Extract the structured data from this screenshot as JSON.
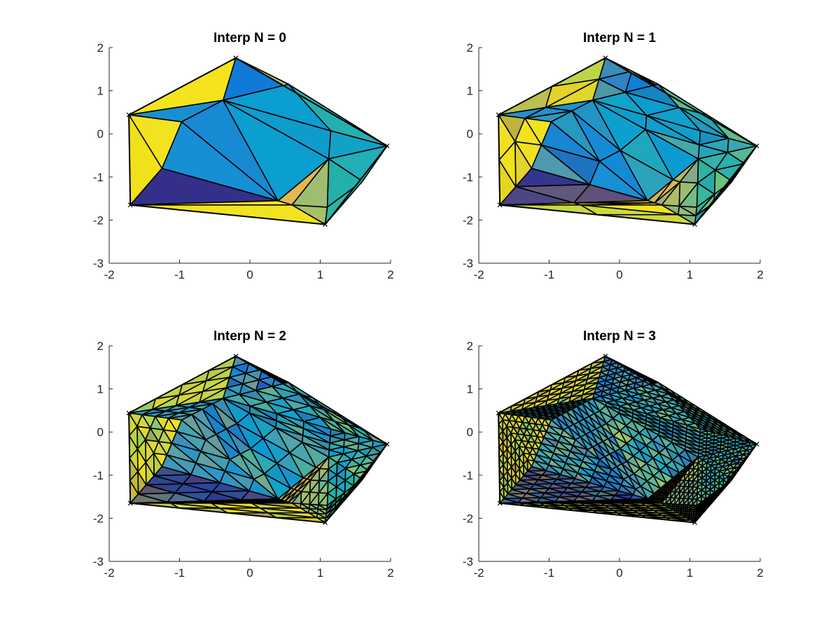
{
  "chart_data": [
    {
      "type": "trimesh",
      "title": "Interp N = 0",
      "refinement": 0,
      "xlim": [
        -2,
        2
      ],
      "ylim": [
        -3,
        2
      ],
      "xticks": [
        "-2",
        "-1",
        "0",
        "1",
        "2"
      ],
      "yticks": [
        "-3",
        "-2",
        "-1",
        "0",
        "1",
        "2"
      ],
      "boundary": [
        [
          -1.72,
          0.44
        ],
        [
          -0.2,
          1.76
        ],
        [
          1.95,
          -0.28
        ],
        [
          1.07,
          -2.1
        ],
        [
          -1.7,
          -1.65
        ]
      ]
    },
    {
      "type": "trimesh",
      "title": "Interp N = 1",
      "refinement": 1,
      "xlim": [
        -2,
        2
      ],
      "ylim": [
        -3,
        2
      ],
      "xticks": [
        "-2",
        "-1",
        "0",
        "1",
        "2"
      ],
      "yticks": [
        "-3",
        "-2",
        "-1",
        "0",
        "1",
        "2"
      ],
      "boundary": [
        [
          -1.72,
          0.44
        ],
        [
          -0.2,
          1.76
        ],
        [
          1.95,
          -0.28
        ],
        [
          1.07,
          -2.1
        ],
        [
          -1.7,
          -1.65
        ]
      ]
    },
    {
      "type": "trimesh",
      "title": "Interp N = 2",
      "refinement": 2,
      "xlim": [
        -2,
        2
      ],
      "ylim": [
        -3,
        2
      ],
      "xticks": [
        "-2",
        "-1",
        "0",
        "1",
        "2"
      ],
      "yticks": [
        "-3",
        "-2",
        "-1",
        "0",
        "1",
        "2"
      ],
      "boundary": [
        [
          -1.72,
          0.44
        ],
        [
          -0.2,
          1.76
        ],
        [
          1.95,
          -0.28
        ],
        [
          1.07,
          -2.1
        ],
        [
          -1.7,
          -1.65
        ]
      ]
    },
    {
      "type": "trimesh",
      "title": "Interp N = 3",
      "refinement": 3,
      "xlim": [
        -2,
        2
      ],
      "ylim": [
        -3,
        2
      ],
      "xticks": [
        "-2",
        "-1",
        "0",
        "1",
        "2"
      ],
      "yticks": [
        "-3",
        "-2",
        "-1",
        "0",
        "1",
        "2"
      ],
      "boundary": [
        [
          -1.72,
          0.44
        ],
        [
          -0.2,
          1.76
        ],
        [
          1.95,
          -0.28
        ],
        [
          1.07,
          -2.1
        ],
        [
          -1.7,
          -1.65
        ]
      ]
    }
  ],
  "base_mesh": {
    "vertices": [
      [
        -1.72,
        0.44
      ],
      [
        -0.2,
        1.76
      ],
      [
        1.95,
        -0.28
      ],
      [
        1.07,
        -2.1
      ],
      [
        -1.7,
        -1.65
      ],
      [
        -0.38,
        0.78
      ],
      [
        -0.97,
        0.28
      ],
      [
        -1.25,
        -0.8
      ],
      [
        0.4,
        -1.55
      ],
      [
        1.12,
        -0.58
      ],
      [
        1.6,
        -1.1
      ],
      [
        1.1,
        -1.7
      ],
      [
        0.6,
        -1.65
      ],
      [
        1.15,
        0.07
      ],
      [
        0.55,
        1.15
      ]
    ],
    "triangles": [
      [
        0,
        1,
        5
      ],
      [
        1,
        14,
        5
      ],
      [
        1,
        2,
        14
      ],
      [
        0,
        5,
        6
      ],
      [
        0,
        6,
        7
      ],
      [
        0,
        7,
        4
      ],
      [
        4,
        7,
        8
      ],
      [
        4,
        8,
        12
      ],
      [
        4,
        12,
        3
      ],
      [
        12,
        11,
        3
      ],
      [
        6,
        8,
        7
      ],
      [
        6,
        5,
        8
      ],
      [
        5,
        9,
        8
      ],
      [
        5,
        13,
        9
      ],
      [
        5,
        14,
        13
      ],
      [
        14,
        2,
        13
      ],
      [
        13,
        2,
        9
      ],
      [
        9,
        2,
        10
      ],
      [
        9,
        10,
        11
      ],
      [
        10,
        3,
        11
      ],
      [
        8,
        9,
        12
      ],
      [
        12,
        9,
        11
      ],
      [
        10,
        2,
        3
      ]
    ],
    "triangle_colors": [
      "#f5e41d",
      "#117ad8",
      "#a3bd6a",
      "#1a8fcf",
      "#f3e220",
      "#f0e11a",
      "#34308a",
      "#f4e41e",
      "#f1e320",
      "#a8bf6b",
      "#168fd5",
      "#178ad3",
      "#0b9fd0",
      "#0e9ccd",
      "#0b9ed0",
      "#24b0b0",
      "#13a2c7",
      "#22aeb5",
      "#22b0ab",
      "#2bb5a3",
      "#e4b74f",
      "#9fbd70",
      "#1cb2b1"
    ]
  }
}
